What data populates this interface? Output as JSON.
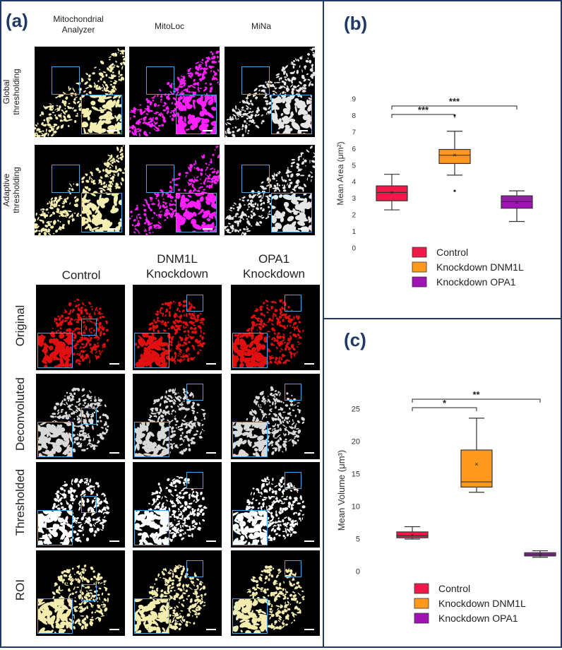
{
  "panels": {
    "a": "(a)",
    "b": "(b)",
    "c": "(c)"
  },
  "top_grid": {
    "columns": [
      {
        "line1": "Mitochondrial",
        "line2": "Analyzer"
      },
      {
        "line1": "MitoLoc",
        "line2": ""
      },
      {
        "line1": "MiNa",
        "line2": ""
      }
    ],
    "rows": [
      {
        "line1": "Global",
        "line2": "thresholding"
      },
      {
        "line1": "Adaptive",
        "line2": "thresholding"
      }
    ],
    "colors": [
      "#f4eeb0",
      "#ff1fff",
      "#e6e6e6"
    ]
  },
  "bottom_grid": {
    "columns": [
      {
        "line1": "Control",
        "line2": ""
      },
      {
        "line1": "DNM1L",
        "line2": "Knockdown"
      },
      {
        "line1": "OPA1",
        "line2": "Knockdown"
      }
    ],
    "rows": [
      "Original",
      "Deconvoluted",
      "Thresholded",
      "ROI"
    ],
    "colors": [
      "#e01010",
      "#d9d9d9",
      "#ffffff",
      "#f3ecae"
    ]
  },
  "chart_data": [
    {
      "type": "box",
      "title": "",
      "xlabel": "",
      "ylabel": "Mean Area (μm²)",
      "ylim": [
        0,
        9
      ],
      "yticks": [
        0,
        1,
        2,
        3,
        4,
        5,
        6,
        7,
        8,
        9
      ],
      "series": [
        {
          "name": "Control",
          "color": "#f0194a",
          "min": 2.3,
          "q1": 2.85,
          "median": 3.35,
          "q3": 3.75,
          "max": 4.45,
          "mean": 3.35,
          "outliers": []
        },
        {
          "name": "Knockdown DNM1L",
          "color": "#ff9a1f",
          "min": 4.4,
          "q1": 5.1,
          "median": 5.6,
          "q3": 5.95,
          "max": 7.05,
          "mean": 5.6,
          "outliers": [
            8.0,
            3.45
          ]
        },
        {
          "name": "Knockdown OPA1",
          "color": "#a014b4",
          "min": 1.6,
          "q1": 2.4,
          "median": 2.8,
          "q3": 3.15,
          "max": 3.45,
          "mean": 2.75,
          "outliers": []
        }
      ],
      "annotations": [
        {
          "from": 0,
          "to": 1,
          "label": "***"
        },
        {
          "from": 0,
          "to": 2,
          "label": "***"
        }
      ],
      "legend": "bottom"
    },
    {
      "type": "box",
      "title": "",
      "xlabel": "",
      "ylabel": "Mean Volume (μm³)",
      "ylim": [
        0,
        25
      ],
      "yticks": [
        0,
        5,
        10,
        15,
        20,
        25
      ],
      "series": [
        {
          "name": "Control",
          "color": "#f0194a",
          "min": 5.0,
          "q1": 5.2,
          "median": 5.5,
          "q3": 6.1,
          "max": 6.9,
          "mean": 5.6,
          "outliers": []
        },
        {
          "name": "Knockdown DNM1L",
          "color": "#ff9a1f",
          "min": 12.2,
          "q1": 13.0,
          "median": 13.8,
          "q3": 18.7,
          "max": 23.6,
          "mean": 16.5,
          "outliers": []
        },
        {
          "name": "Knockdown OPA1",
          "color": "#a014b4",
          "min": 2.2,
          "q1": 2.4,
          "median": 2.6,
          "q3": 2.9,
          "max": 3.2,
          "mean": 2.6,
          "outliers": []
        }
      ],
      "annotations": [
        {
          "from": 0,
          "to": 1,
          "label": "*"
        },
        {
          "from": 0,
          "to": 2,
          "label": "**"
        }
      ],
      "legend": "bottom"
    }
  ]
}
